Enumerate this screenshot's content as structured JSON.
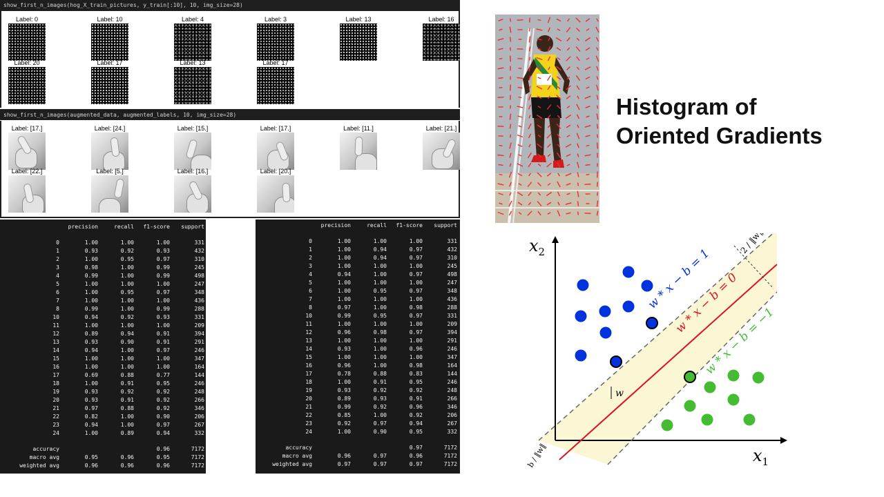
{
  "notebook": {
    "cell1": {
      "code": "show_first_n_images(hog_X_train_pictures, y_train[:10], 10, img_size=28)"
    },
    "cell1_labels": [
      "Label: 0",
      "Label: 10",
      "Label: 4",
      "Label: 3",
      "Label: 13",
      "Label: 16",
      "Label: 20",
      "Label: 17",
      "Label: 13",
      "Label: 17"
    ],
    "cell2": {
      "code": "show_first_n_images(augmented_data, augmented_labels, 10, img_size=28)"
    },
    "cell2_labels": [
      "Label: [17.]",
      "Label: [24.]",
      "Label: [15.]",
      "Label: [17.]",
      "Label: [11.]",
      "Label: [21.]",
      "Label: [22.]",
      "Label: [5.]",
      "Label: [16.]",
      "Label: [20.]"
    ]
  },
  "report_left": {
    "header": [
      "",
      "precision",
      "recall",
      "f1-score",
      "support"
    ],
    "rows": [
      [
        "0",
        "1.00",
        "1.00",
        "1.00",
        "331"
      ],
      [
        "1",
        "0.93",
        "0.92",
        "0.93",
        "432"
      ],
      [
        "2",
        "1.00",
        "0.95",
        "0.97",
        "310"
      ],
      [
        "3",
        "0.98",
        "1.00",
        "0.99",
        "245"
      ],
      [
        "4",
        "0.99",
        "1.00",
        "0.99",
        "498"
      ],
      [
        "5",
        "1.00",
        "1.00",
        "1.00",
        "247"
      ],
      [
        "6",
        "1.00",
        "0.95",
        "0.97",
        "348"
      ],
      [
        "7",
        "1.00",
        "1.00",
        "1.00",
        "436"
      ],
      [
        "8",
        "0.99",
        "1.00",
        "0.99",
        "288"
      ],
      [
        "10",
        "0.94",
        "0.92",
        "0.93",
        "331"
      ],
      [
        "11",
        "1.00",
        "1.00",
        "1.00",
        "209"
      ],
      [
        "12",
        "0.89",
        "0.94",
        "0.91",
        "394"
      ],
      [
        "13",
        "0.93",
        "0.90",
        "0.91",
        "291"
      ],
      [
        "14",
        "0.94",
        "1.00",
        "0.97",
        "246"
      ],
      [
        "15",
        "1.00",
        "1.00",
        "1.00",
        "347"
      ],
      [
        "16",
        "1.00",
        "1.00",
        "1.00",
        "164"
      ],
      [
        "17",
        "0.69",
        "0.88",
        "0.77",
        "144"
      ],
      [
        "18",
        "1.00",
        "0.91",
        "0.95",
        "246"
      ],
      [
        "19",
        "0.93",
        "0.92",
        "0.92",
        "248"
      ],
      [
        "20",
        "0.93",
        "0.91",
        "0.92",
        "266"
      ],
      [
        "21",
        "0.97",
        "0.88",
        "0.92",
        "346"
      ],
      [
        "22",
        "0.82",
        "1.00",
        "0.90",
        "206"
      ],
      [
        "23",
        "0.94",
        "1.00",
        "0.97",
        "267"
      ],
      [
        "24",
        "1.00",
        "0.89",
        "0.94",
        "332"
      ]
    ],
    "summary": [
      [
        "accuracy",
        "",
        "",
        "0.96",
        "7172"
      ],
      [
        "macro avg",
        "0.95",
        "0.96",
        "0.95",
        "7172"
      ],
      [
        "weighted avg",
        "0.96",
        "0.96",
        "0.96",
        "7172"
      ]
    ]
  },
  "report_right": {
    "header": [
      "",
      "precision",
      "recall",
      "f1-score",
      "support"
    ],
    "rows": [
      [
        "0",
        "1.00",
        "1.00",
        "1.00",
        "331"
      ],
      [
        "1",
        "1.00",
        "0.94",
        "0.97",
        "432"
      ],
      [
        "2",
        "1.00",
        "0.94",
        "0.97",
        "310"
      ],
      [
        "3",
        "1.00",
        "1.00",
        "1.00",
        "245"
      ],
      [
        "4",
        "0.94",
        "1.00",
        "0.97",
        "498"
      ],
      [
        "5",
        "1.00",
        "1.00",
        "1.00",
        "247"
      ],
      [
        "6",
        "1.00",
        "0.95",
        "0.97",
        "348"
      ],
      [
        "7",
        "1.00",
        "1.00",
        "1.00",
        "436"
      ],
      [
        "8",
        "0.97",
        "1.00",
        "0.98",
        "288"
      ],
      [
        "10",
        "0.99",
        "0.95",
        "0.97",
        "331"
      ],
      [
        "11",
        "1.00",
        "1.00",
        "1.00",
        "209"
      ],
      [
        "12",
        "0.96",
        "0.98",
        "0.97",
        "394"
      ],
      [
        "13",
        "1.00",
        "1.00",
        "1.00",
        "291"
      ],
      [
        "14",
        "0.93",
        "1.00",
        "0.96",
        "246"
      ],
      [
        "15",
        "1.00",
        "1.00",
        "1.00",
        "347"
      ],
      [
        "16",
        "0.96",
        "1.00",
        "0.98",
        "164"
      ],
      [
        "17",
        "0.78",
        "0.88",
        "0.83",
        "144"
      ],
      [
        "18",
        "1.00",
        "0.91",
        "0.95",
        "246"
      ],
      [
        "19",
        "0.93",
        "0.92",
        "0.92",
        "248"
      ],
      [
        "20",
        "0.89",
        "0.93",
        "0.91",
        "266"
      ],
      [
        "21",
        "0.99",
        "0.92",
        "0.96",
        "346"
      ],
      [
        "22",
        "0.85",
        "1.00",
        "0.92",
        "206"
      ],
      [
        "23",
        "0.92",
        "0.97",
        "0.94",
        "267"
      ],
      [
        "24",
        "1.00",
        "0.90",
        "0.95",
        "332"
      ]
    ],
    "summary": [
      [
        "accuracy",
        "",
        "",
        "0.97",
        "7172"
      ],
      [
        "macro avg",
        "0.96",
        "0.97",
        "0.96",
        "7172"
      ],
      [
        "weighted avg",
        "0.97",
        "0.97",
        "0.97",
        "7172"
      ]
    ]
  },
  "hog_title": {
    "line1": "Histogram of",
    "line2": "Oriented Gradients"
  },
  "svm_diagram": {
    "axis_x": "x",
    "axis_x_sub": "1",
    "axis_y": "x",
    "axis_y_sub": "2",
    "line_upper": "w * x − b = 1",
    "line_mid": "w * x − b = 0",
    "line_lower": "w * x − b = −1",
    "margin_label": "2 / ‖w‖",
    "offset_label": "b / ‖w‖",
    "normal_label": "w",
    "colors": {
      "class_a": "#0033dd",
      "class_b": "#44bb33",
      "boundary": "#dd1122",
      "margin_fill": "#fbf7d4"
    }
  }
}
